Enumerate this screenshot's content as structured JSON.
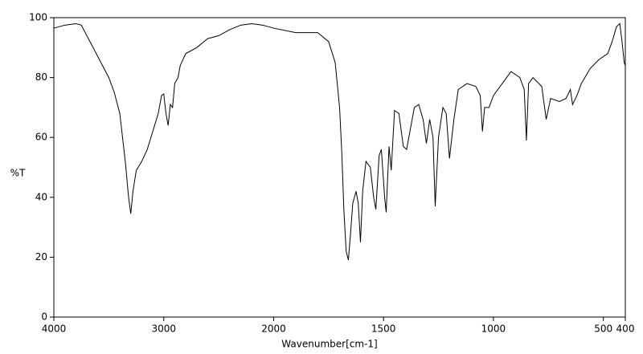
{
  "chart_data": {
    "type": "line",
    "xlabel": "Wavenumber[cm-1]",
    "ylabel": "%T",
    "color": "#000000",
    "xlim": [
      4000,
      400
    ],
    "xticks": [
      4000,
      3000,
      2000,
      1500,
      1000,
      500,
      400
    ],
    "xscale_break": 2000,
    "xscale_ratio": 2,
    "ylim": [
      0,
      100
    ],
    "yticks": [
      0,
      20,
      40,
      60,
      80,
      100
    ],
    "grid": false,
    "x": [
      4000,
      3900,
      3800,
      3750,
      3700,
      3600,
      3500,
      3450,
      3400,
      3350,
      3320,
      3300,
      3280,
      3250,
      3200,
      3150,
      3100,
      3050,
      3020,
      3000,
      2980,
      2960,
      2940,
      2920,
      2900,
      2870,
      2850,
      2800,
      2700,
      2600,
      2500,
      2400,
      2300,
      2200,
      2100,
      2000,
      1900,
      1800,
      1750,
      1720,
      1700,
      1690,
      1680,
      1670,
      1660,
      1650,
      1640,
      1625,
      1615,
      1605,
      1595,
      1580,
      1560,
      1545,
      1535,
      1520,
      1510,
      1495,
      1488,
      1475,
      1465,
      1450,
      1430,
      1410,
      1395,
      1380,
      1360,
      1340,
      1320,
      1305,
      1290,
      1275,
      1265,
      1250,
      1230,
      1215,
      1200,
      1180,
      1160,
      1120,
      1080,
      1060,
      1050,
      1040,
      1020,
      1000,
      960,
      920,
      880,
      860,
      850,
      840,
      820,
      780,
      760,
      740,
      700,
      670,
      650,
      640,
      620,
      600,
      560,
      520,
      480,
      460,
      440,
      425,
      415,
      405,
      400
    ],
    "values": [
      96.5,
      97.5,
      98,
      97.5,
      94,
      87,
      80,
      75,
      68,
      52,
      40,
      34.5,
      42,
      49,
      52,
      56,
      62,
      68,
      74,
      74.5,
      68,
      64,
      71,
      70,
      78,
      80,
      84,
      88,
      90,
      93,
      94,
      96,
      97.5,
      98,
      97.5,
      96.5,
      95,
      95,
      92,
      85,
      70,
      55,
      35,
      22,
      19,
      28,
      38,
      42,
      38,
      25,
      42,
      52,
      50,
      40,
      36,
      54,
      56,
      40,
      35,
      57,
      49,
      69,
      68,
      57,
      56,
      62,
      70,
      71,
      66,
      58,
      66,
      60,
      37,
      60,
      70,
      68,
      53,
      66,
      76,
      78,
      77,
      74,
      62,
      70,
      70,
      74,
      78,
      82,
      80,
      76,
      59,
      78,
      80,
      77,
      66,
      73,
      72,
      73,
      76,
      71,
      74,
      78,
      83,
      86,
      88,
      92,
      97,
      98,
      92,
      85,
      84
    ]
  }
}
